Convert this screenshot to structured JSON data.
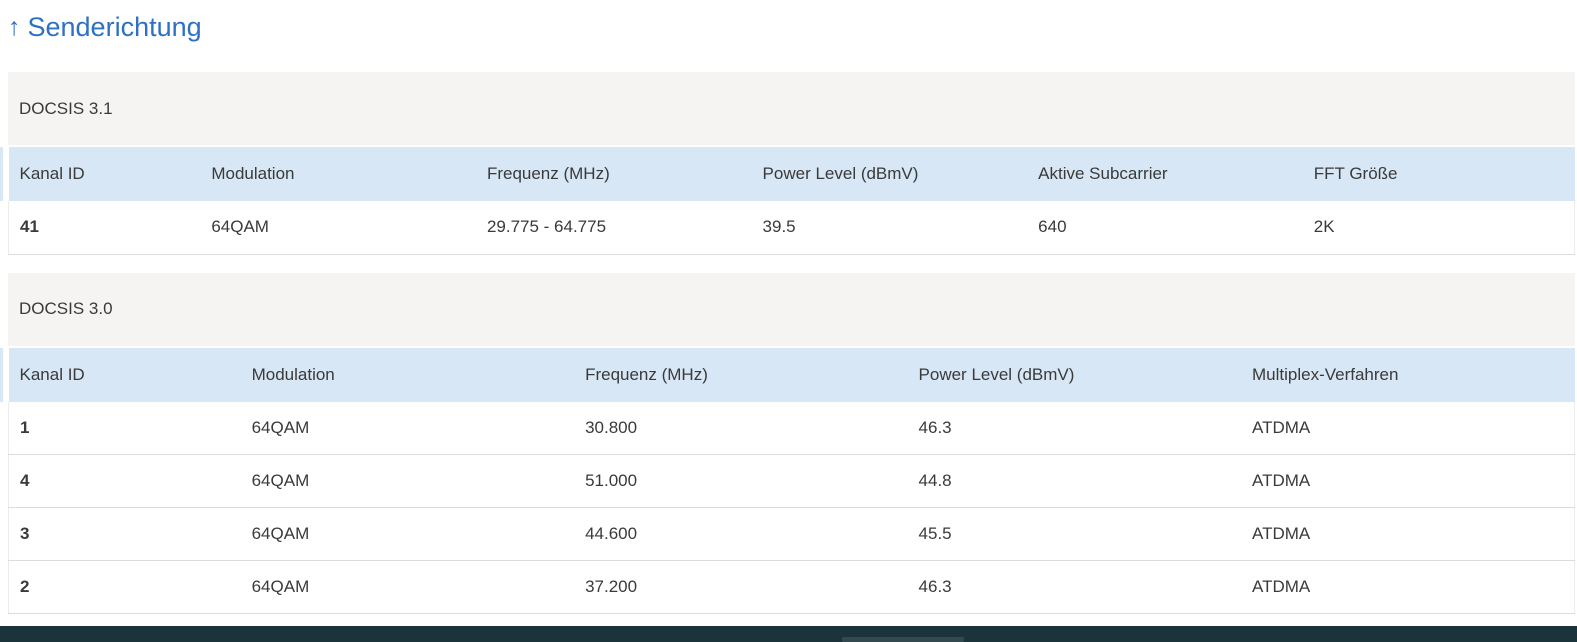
{
  "header": {
    "arrow": "↑",
    "title": "Senderichtung"
  },
  "tables": [
    {
      "section_title": "DOCSIS 3.1",
      "columns": [
        "Kanal ID",
        "Modulation",
        "Frequenz (MHz)",
        "Power Level (dBmV)",
        "Aktive Subcarrier",
        "FFT Größe"
      ],
      "rows": [
        [
          "41",
          "64QAM",
          "29.775 - 64.775",
          "39.5",
          "640",
          "2K"
        ]
      ]
    },
    {
      "section_title": "DOCSIS 3.0",
      "columns": [
        "Kanal ID",
        "Modulation",
        "Frequenz (MHz)",
        "Power Level (dBmV)",
        "Multiplex-Verfahren"
      ],
      "rows": [
        [
          "1",
          "64QAM",
          "30.800",
          "46.3",
          "ATDMA"
        ],
        [
          "4",
          "64QAM",
          "51.000",
          "44.8",
          "ATDMA"
        ],
        [
          "3",
          "64QAM",
          "44.600",
          "45.5",
          "ATDMA"
        ],
        [
          "2",
          "64QAM",
          "37.200",
          "46.3",
          "ATDMA"
        ]
      ]
    }
  ],
  "colors": {
    "title_blue": "#2e71c4",
    "table_header_bg": "#d7e7f5",
    "section_bg": "#f5f4f2",
    "footer_bg": "#1b333b",
    "footer_thumb": "#32494f",
    "text": "#3a3a3a"
  }
}
